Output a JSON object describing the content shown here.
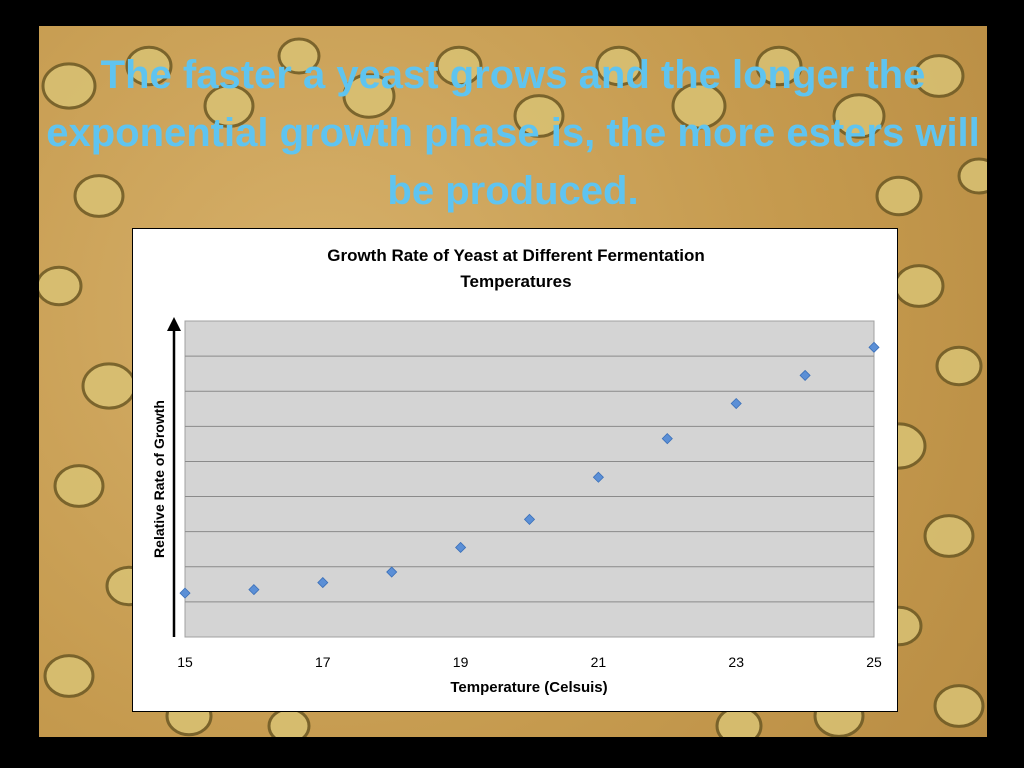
{
  "slide": {
    "headline": "The faster a yeast grows and the longer the exponential growth phase is, the more esters will be produced.",
    "headline_color": "#5fc4f0",
    "background_description_colors": {
      "frame": "#000000",
      "card": "#ffffff"
    }
  },
  "chart_data": {
    "type": "scatter",
    "title_line1": "Growth Rate of Yeast at Different Fermentation",
    "title_line2": "Temperatures",
    "xlabel": "Temperature (Celsuis)",
    "ylabel": "Relative Rate of Growth",
    "xlim": [
      15,
      25
    ],
    "ylim": [
      0,
      9
    ],
    "x_ticks": [
      "15",
      "17",
      "19",
      "21",
      "23",
      "25"
    ],
    "grid": true,
    "plot_background": "#d4d4d4",
    "marker_color": "#5b8fd6",
    "points": [
      {
        "x": 15,
        "y": 1.25
      },
      {
        "x": 16,
        "y": 1.35
      },
      {
        "x": 17,
        "y": 1.55
      },
      {
        "x": 18,
        "y": 1.85
      },
      {
        "x": 19,
        "y": 2.55
      },
      {
        "x": 20,
        "y": 3.35
      },
      {
        "x": 21,
        "y": 4.55
      },
      {
        "x": 22,
        "y": 5.65
      },
      {
        "x": 23,
        "y": 6.65
      },
      {
        "x": 24,
        "y": 7.45
      },
      {
        "x": 25,
        "y": 8.25
      }
    ]
  }
}
